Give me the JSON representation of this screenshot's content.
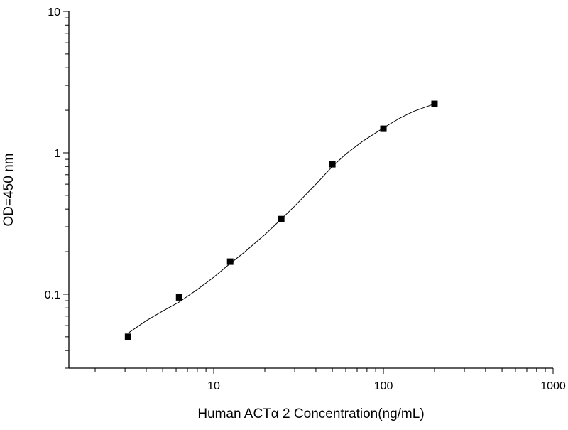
{
  "chart_data": {
    "type": "scatter",
    "title": "",
    "xlabel": "Human ACTα 2 Concentration(ng/mL)",
    "ylabel": "OD=450 nm",
    "x_scale": "log",
    "y_scale": "log",
    "xlim": [
      1.4,
      1000
    ],
    "ylim": [
      0.03,
      10
    ],
    "x_tick_labels": [
      {
        "value": 10,
        "label": "10"
      },
      {
        "value": 100,
        "label": "100"
      },
      {
        "value": 1000,
        "label": "1000"
      }
    ],
    "y_tick_labels": [
      {
        "value": 0.1,
        "label": "0.1"
      },
      {
        "value": 1,
        "label": "1"
      },
      {
        "value": 10,
        "label": "10"
      }
    ],
    "grid": false,
    "legend": "none",
    "series": [
      {
        "style": "markers",
        "marker": "square",
        "color": "#000000",
        "x": [
          3.125,
          6.25,
          12.5,
          25,
          50,
          100,
          200
        ],
        "y": [
          0.05,
          0.095,
          0.17,
          0.34,
          0.83,
          1.48,
          2.22
        ]
      },
      {
        "style": "line",
        "color": "#000000",
        "x": [
          3.125,
          4,
          5,
          6.25,
          8,
          10,
          12.5,
          15,
          20,
          25,
          30,
          40,
          50,
          60,
          75,
          100,
          125,
          150,
          200
        ],
        "y": [
          0.053,
          0.065,
          0.076,
          0.088,
          0.108,
          0.132,
          0.165,
          0.196,
          0.264,
          0.34,
          0.42,
          0.6,
          0.8,
          0.98,
          1.2,
          1.5,
          1.76,
          1.96,
          2.22
        ]
      }
    ]
  }
}
